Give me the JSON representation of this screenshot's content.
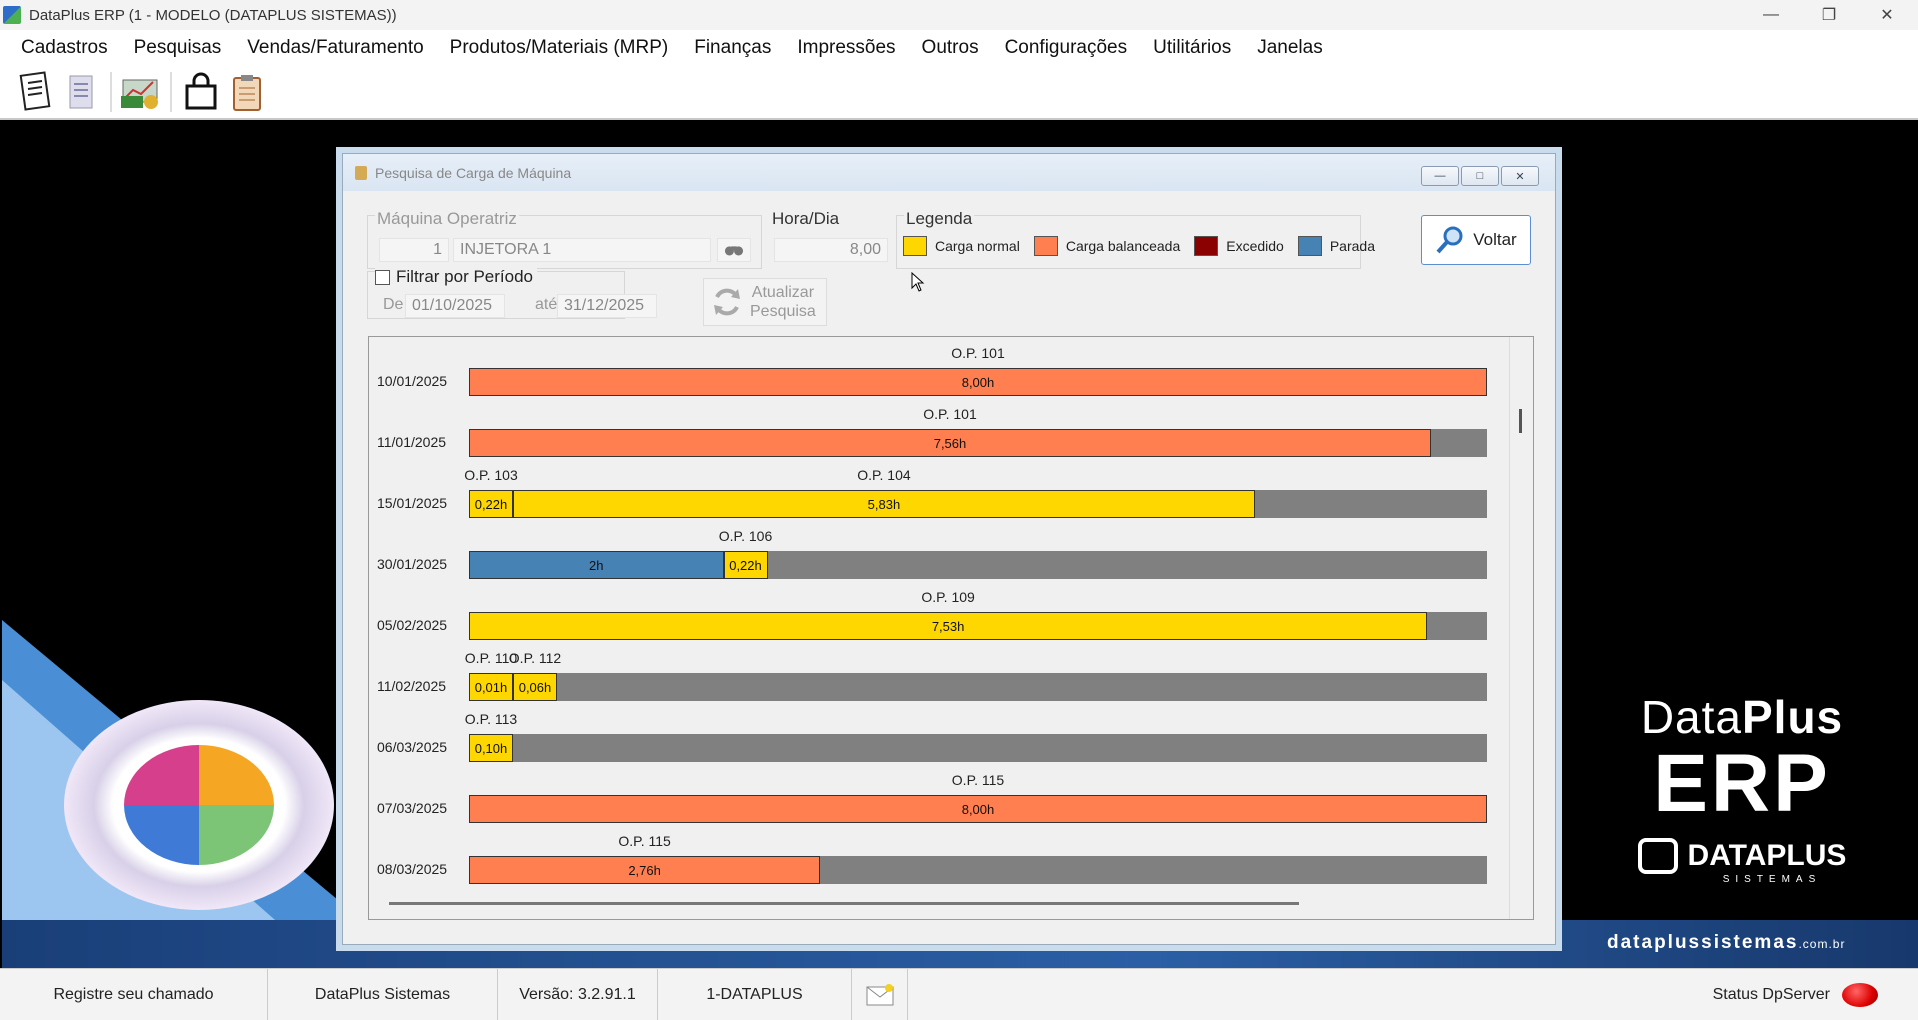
{
  "window": {
    "title": "DataPlus ERP (1 - MODELO  (DATAPLUS SISTEMAS))"
  },
  "menu": [
    "Cadastros",
    "Pesquisas",
    "Vendas/Faturamento",
    "Produtos/Materiais (MRP)",
    "Finanças",
    "Impressões",
    "Outros",
    "Configurações",
    "Utilitários",
    "Janelas"
  ],
  "dialog": {
    "title": "Pesquisa de Carga de Máquina",
    "machine_label": "Máquina Operatriz",
    "machine_code": "1",
    "machine_name": "INJETORA 1",
    "hours_label": "Hora/Dia",
    "hours_value": "8,00",
    "legend_label": "Legenda",
    "legend": [
      {
        "label": "Carga normal",
        "color": "#FFD700"
      },
      {
        "label": "Carga balanceada",
        "color": "#FF7F50"
      },
      {
        "label": "Excedido",
        "color": "#8B0000"
      },
      {
        "label": "Parada",
        "color": "#4682B4"
      }
    ],
    "filter_label": "Filtrar por Período",
    "from_label": "De",
    "from_value": "01/10/2025",
    "to_label": "até",
    "to_value": "31/12/2025",
    "update_label_1": "Atualizar",
    "update_label_2": "Pesquisa",
    "back_label": "Voltar"
  },
  "chart_data": {
    "type": "bar",
    "hours_per_day": 8,
    "rows": [
      {
        "date": "10/01/2025",
        "segments": [
          {
            "op": "O.P. 101",
            "hours": 8.0,
            "label": "8,00h",
            "status": "balanceada"
          }
        ]
      },
      {
        "date": "11/01/2025",
        "segments": [
          {
            "op": "O.P. 101",
            "hours": 7.56,
            "label": "7,56h",
            "status": "balanceada"
          }
        ]
      },
      {
        "date": "15/01/2025",
        "segments": [
          {
            "op": "O.P. 103",
            "hours": 0.22,
            "label": "0,22h",
            "status": "normal"
          },
          {
            "op": "O.P. 104",
            "hours": 5.83,
            "label": "5,83h",
            "status": "normal"
          }
        ]
      },
      {
        "date": "30/01/2025",
        "segments": [
          {
            "op": "",
            "hours": 2.0,
            "label": "2h",
            "status": "parada"
          },
          {
            "op": "O.P. 106",
            "hours": 0.22,
            "label": "0,22h",
            "status": "normal"
          }
        ]
      },
      {
        "date": "05/02/2025",
        "segments": [
          {
            "op": "O.P. 109",
            "hours": 7.53,
            "label": "7,53h",
            "status": "normal"
          }
        ]
      },
      {
        "date": "11/02/2025",
        "segments": [
          {
            "op": "O.P. 110",
            "hours": 0.01,
            "label": "0,01h",
            "status": "normal"
          },
          {
            "op": "O.P. 112",
            "hours": 0.06,
            "label": "0,06h",
            "status": "normal"
          }
        ]
      },
      {
        "date": "06/03/2025",
        "segments": [
          {
            "op": "O.P. 113",
            "hours": 0.1,
            "label": "0,10h",
            "status": "normal"
          }
        ]
      },
      {
        "date": "07/03/2025",
        "segments": [
          {
            "op": "O.P. 115",
            "hours": 8.0,
            "label": "8,00h",
            "status": "balanceada"
          }
        ]
      },
      {
        "date": "08/03/2025",
        "segments": [
          {
            "op": "O.P. 115",
            "hours": 2.76,
            "label": "2,76h",
            "status": "balanceada"
          }
        ]
      }
    ],
    "colors": {
      "normal": "#FFD700",
      "balanceada": "#FF7F50",
      "excedido": "#8B0000",
      "parada": "#4682B4",
      "free": "#808080"
    }
  },
  "branding": {
    "line1_light": "Data",
    "line1_bold": "Plus",
    "line2": "ERP",
    "company": "DATAPLUS",
    "company_sub": "SISTEMAS",
    "site": "dataplussistemas",
    "site_tld": ".com.br"
  },
  "statusbar": {
    "ticket": "Registre seu chamado",
    "company": "DataPlus Sistemas",
    "version": "Versão: 3.2.91.1",
    "db": "1-DATAPLUS",
    "server": "Status DpServer"
  }
}
